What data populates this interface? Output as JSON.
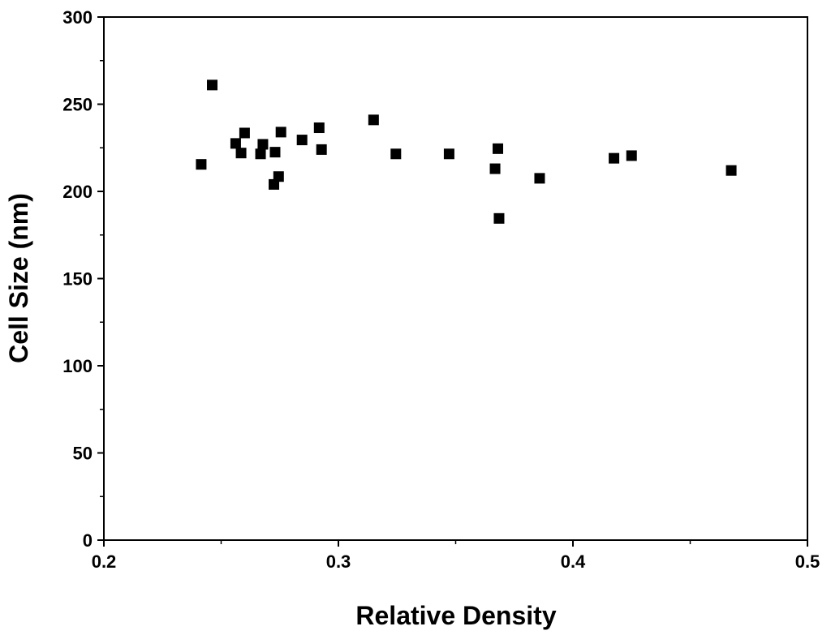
{
  "chart_data": {
    "type": "scatter",
    "title": "",
    "xlabel": "Relative Density",
    "ylabel": "Cell Size (nm)",
    "xlim": [
      0.2,
      0.5
    ],
    "ylim": [
      0,
      300
    ],
    "xticks": [
      0.2,
      0.3,
      0.4,
      0.5
    ],
    "xtick_labels": [
      "0.2",
      "0.3",
      "0.4",
      "0.5"
    ],
    "yticks": [
      0,
      50,
      100,
      150,
      200,
      250,
      300
    ],
    "ytick_labels": [
      "0",
      "50",
      "100",
      "150",
      "200",
      "250",
      "300"
    ],
    "grid": false,
    "marker": "square",
    "marker_color": "#000000",
    "series": [
      {
        "x": [
          0.2415,
          0.2462,
          0.2562,
          0.2585,
          0.26,
          0.2668,
          0.2678,
          0.2725,
          0.273,
          0.2745,
          0.2755,
          0.2845,
          0.2918,
          0.2928,
          0.315,
          0.3245,
          0.3472,
          0.3668,
          0.368,
          0.3685,
          0.3858,
          0.4175,
          0.425,
          0.4675
        ],
        "y": [
          215.5,
          261.0,
          227.5,
          222.0,
          233.5,
          221.5,
          227.0,
          204.0,
          222.5,
          208.5,
          234.0,
          229.5,
          236.5,
          224.0,
          241.0,
          221.5,
          221.5,
          213.0,
          224.5,
          184.5,
          207.5,
          219.0,
          220.5,
          212.0
        ]
      }
    ]
  }
}
